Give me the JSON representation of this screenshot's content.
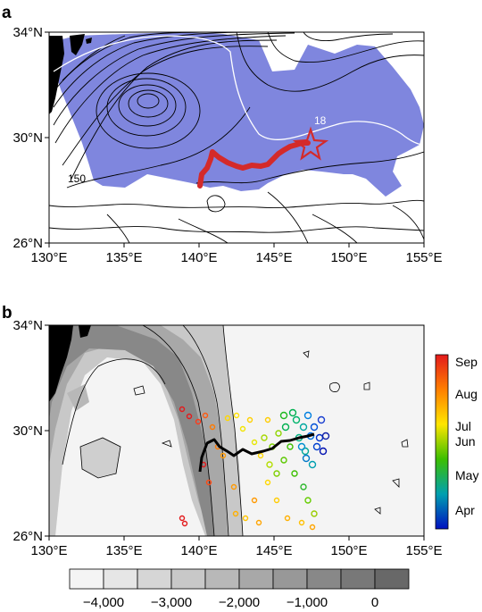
{
  "panel_a": {
    "letter": "a",
    "lat_ticks": [
      "34°N",
      "30°N",
      "26°N"
    ],
    "lon_ticks": [
      "130°E",
      "135°E",
      "140°E",
      "145°E",
      "150°E",
      "155°E"
    ],
    "contour_labels": [
      "150",
      "18"
    ],
    "colors": {
      "shading": "#7f86de",
      "track": "#d42a2a",
      "land": "#000000",
      "isotherm": "#ffffff"
    },
    "star_symbol": "star-marker"
  },
  "panel_b": {
    "letter": "b",
    "lat_ticks": [
      "34°N",
      "30°N",
      "26°N"
    ],
    "lon_ticks": [
      "130°E",
      "135°E",
      "140°E",
      "145°E",
      "150°E",
      "155°E"
    ],
    "month_colorbar": [
      "Sep",
      "Aug",
      "Jul",
      "Jun",
      "May",
      "Apr"
    ],
    "depth_colorbar": [
      "−4,000",
      "−3,000",
      "−2,000",
      "−1,000",
      "0"
    ]
  },
  "chart_data": [
    {
      "type": "map",
      "panel": "a",
      "lon_range": [
        130,
        155
      ],
      "lat_range": [
        26,
        34
      ],
      "contour_labels": [
        150,
        18
      ],
      "track": [
        [
          140,
          28.4
        ],
        [
          140.5,
          28.8
        ],
        [
          141,
          29.3
        ],
        [
          142,
          29.0
        ],
        [
          143,
          29.1
        ],
        [
          144,
          29.3
        ],
        [
          145,
          29.6
        ],
        [
          146,
          29.8
        ],
        [
          147,
          29.9
        ]
      ]
    },
    {
      "type": "map",
      "panel": "b",
      "lon_range": [
        130,
        155
      ],
      "lat_range": [
        26,
        34
      ],
      "month_scale": [
        "Apr",
        "May",
        "Jun",
        "Jul",
        "Aug",
        "Sep"
      ],
      "depth_scale": [
        -4000,
        -3000,
        -2000,
        -1000,
        0
      ],
      "mean_track": [
        [
          140,
          28.3
        ],
        [
          140.5,
          29.2
        ],
        [
          141.5,
          28.9
        ],
        [
          142,
          28.6
        ],
        [
          143,
          28.7
        ],
        [
          144,
          29.0
        ],
        [
          145,
          29.4
        ],
        [
          146,
          29.6
        ],
        [
          147,
          29.7
        ]
      ]
    }
  ]
}
